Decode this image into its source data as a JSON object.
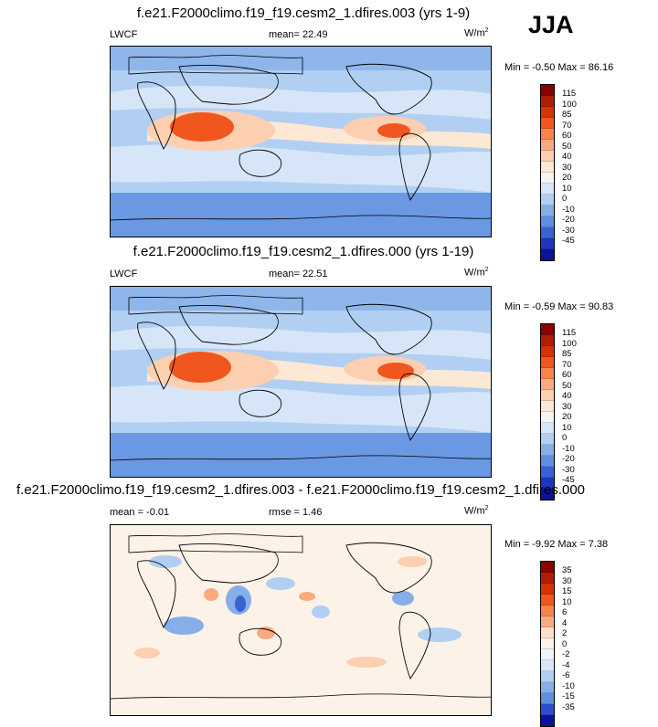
{
  "season": "JJA",
  "panels": [
    {
      "title": "f.e21.F2000climo.f19_f19.cesm2_1.dfires.003 (yrs 1-9)",
      "left_label": "LWCF",
      "center_label": "mean=  22.49",
      "units": "W/m",
      "units_sup": "2",
      "min_max": "Min =  -0.50 Max =  86.16"
    },
    {
      "title": "f.e21.F2000climo.f19_f19.cesm2_1.dfires.000 (yrs 1-19)",
      "left_label": "LWCF",
      "center_label": "mean=  22.51",
      "units": "W/m",
      "units_sup": "2",
      "min_max": "Min =  -0.59 Max =  90.83"
    },
    {
      "title": "f.e21.F2000climo.f19_f19.cesm2_1.dfires.003 - f.e21.F2000climo.f19_f19.cesm2_1.dfires.000",
      "left_label": "mean =  -0.01",
      "center_label": "rmse =   1.46",
      "units": "W/m",
      "units_sup": "2",
      "min_max": "Min =  -9.92 Max =   7.38"
    }
  ],
  "colorbars": {
    "field": {
      "ticks": [
        "115",
        "100",
        "85",
        "70",
        "60",
        "50",
        "40",
        "30",
        "20",
        "10",
        "0",
        "-10",
        "-20",
        "-30",
        "-45"
      ],
      "colors": [
        "#8b0000",
        "#b01e00",
        "#d83200",
        "#f0561e",
        "#f8844c",
        "#fbaa7e",
        "#fccfb0",
        "#fde8d5",
        "#f4f4f4",
        "#d6e6f8",
        "#b1cff2",
        "#86afe9",
        "#5e8ee0",
        "#3b62d4",
        "#1e35c0",
        "#0b1398"
      ]
    },
    "diff": {
      "ticks": [
        "35",
        "30",
        "15",
        "10",
        "6",
        "4",
        "2",
        "0",
        "-2",
        "-4",
        "-6",
        "-10",
        "-15",
        "-35"
      ],
      "colors": [
        "#8b0000",
        "#b01e00",
        "#d83200",
        "#f0561e",
        "#f8844c",
        "#fbaa7e",
        "#fce0c9",
        "#fdf2e8",
        "#eef3fb",
        "#d6e6f8",
        "#b1cff2",
        "#86afe9",
        "#5e8ee0",
        "#2f4ccb",
        "#0b1398"
      ]
    }
  },
  "colors": {
    "ocean_base": "#b1cff2",
    "pale": "#d6e6f8",
    "cream": "#fde8d5",
    "peach": "#fccfb0",
    "orange": "#f0561e",
    "red": "#d83200",
    "mid_blue": "#86afe9",
    "blue": "#5e8ee0",
    "diff_base": "#fdf2e8",
    "diff_pos": "#fbaa7e",
    "diff_neg": "#86afe9",
    "diff_deep_neg": "#3b62d4"
  }
}
